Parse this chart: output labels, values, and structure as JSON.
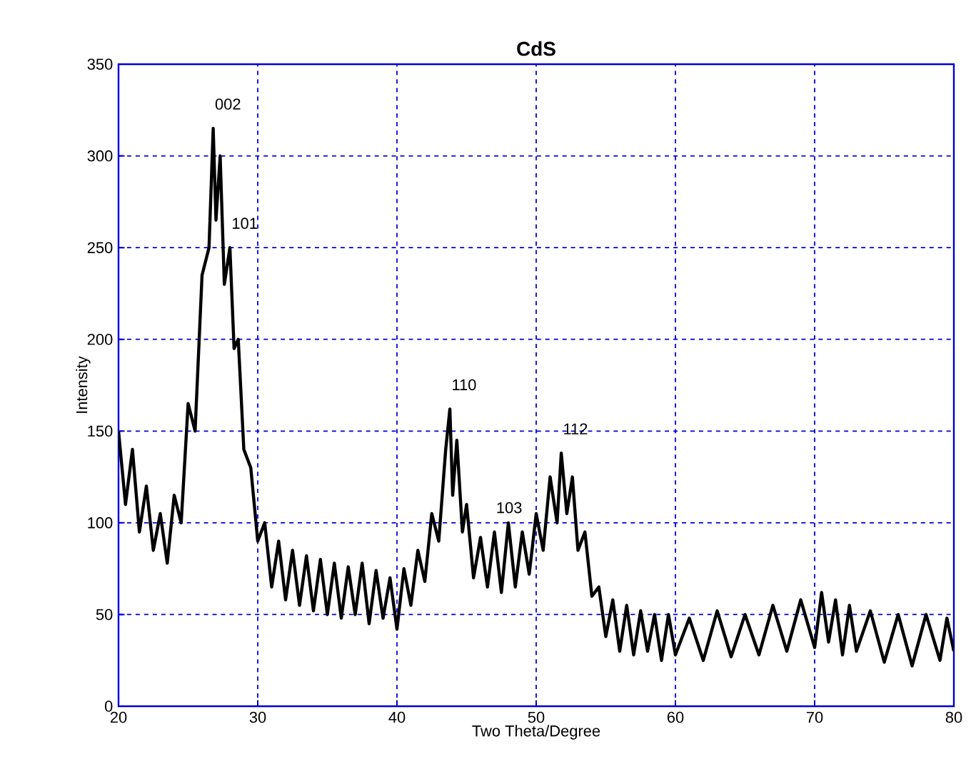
{
  "chart_data": {
    "type": "line",
    "title": "CdS",
    "xlabel": "Two Theta/Degree",
    "ylabel": "Intensity",
    "xlim": [
      20,
      80
    ],
    "xticks": [
      20,
      30,
      40,
      50,
      60,
      70,
      80
    ],
    "ylim": [
      0,
      350
    ],
    "yticks": [
      0,
      50,
      100,
      150,
      200,
      250,
      300,
      350
    ],
    "grid": true,
    "marker": "none",
    "line_style": "solid",
    "annotations": [
      {
        "text": "002",
        "x": 26.8,
        "y": 315
      },
      {
        "text": "101",
        "x": 28,
        "y": 250
      },
      {
        "text": "110",
        "x": 43.8,
        "y": 162
      },
      {
        "text": "103",
        "x": 47,
        "y": 95
      },
      {
        "text": "112",
        "x": 51.8,
        "y": 138
      }
    ],
    "series": [
      {
        "color": "#000000",
        "x": [
          20,
          20.5,
          21,
          21.5,
          22,
          22.5,
          23,
          23.5,
          24,
          24.5,
          25,
          25.5,
          26,
          26.5,
          26.8,
          27,
          27.3,
          27.6,
          28,
          28.3,
          28.6,
          29,
          29.5,
          30,
          30.5,
          31,
          31.5,
          32,
          32.5,
          33,
          33.5,
          34,
          34.5,
          35,
          35.5,
          36,
          36.5,
          37,
          37.5,
          38,
          38.5,
          39,
          39.5,
          40,
          40.5,
          41,
          41.5,
          42,
          42.5,
          43,
          43.5,
          43.8,
          44,
          44.3,
          44.7,
          45,
          45.5,
          46,
          46.5,
          47,
          47.5,
          48,
          48.5,
          49,
          49.5,
          50,
          50.5,
          51,
          51.5,
          51.8,
          52.2,
          52.6,
          53,
          53.5,
          54,
          54.5,
          55,
          55.5,
          56,
          56.5,
          57,
          57.5,
          58,
          58.5,
          59,
          59.5,
          60,
          61,
          62,
          63,
          64,
          65,
          66,
          67,
          68,
          69,
          70,
          70.5,
          71,
          71.5,
          72,
          72.5,
          73,
          74,
          75,
          76,
          77,
          78,
          79,
          79.5,
          80
        ],
        "values": [
          150,
          110,
          140,
          95,
          120,
          85,
          105,
          78,
          115,
          100,
          165,
          150,
          235,
          250,
          315,
          265,
          300,
          230,
          250,
          195,
          200,
          140,
          130,
          90,
          100,
          65,
          90,
          58,
          85,
          55,
          82,
          52,
          80,
          50,
          78,
          48,
          76,
          50,
          78,
          45,
          74,
          48,
          70,
          42,
          75,
          55,
          85,
          68,
          105,
          90,
          140,
          162,
          115,
          145,
          95,
          110,
          70,
          92,
          65,
          95,
          62,
          100,
          65,
          95,
          72,
          105,
          85,
          125,
          100,
          138,
          105,
          125,
          85,
          95,
          60,
          65,
          38,
          58,
          30,
          55,
          28,
          52,
          30,
          50,
          25,
          50,
          28,
          48,
          25,
          52,
          27,
          50,
          28,
          55,
          30,
          58,
          32,
          62,
          35,
          58,
          28,
          55,
          30,
          52,
          24,
          50,
          22,
          50,
          25,
          48,
          30
        ]
      }
    ]
  }
}
